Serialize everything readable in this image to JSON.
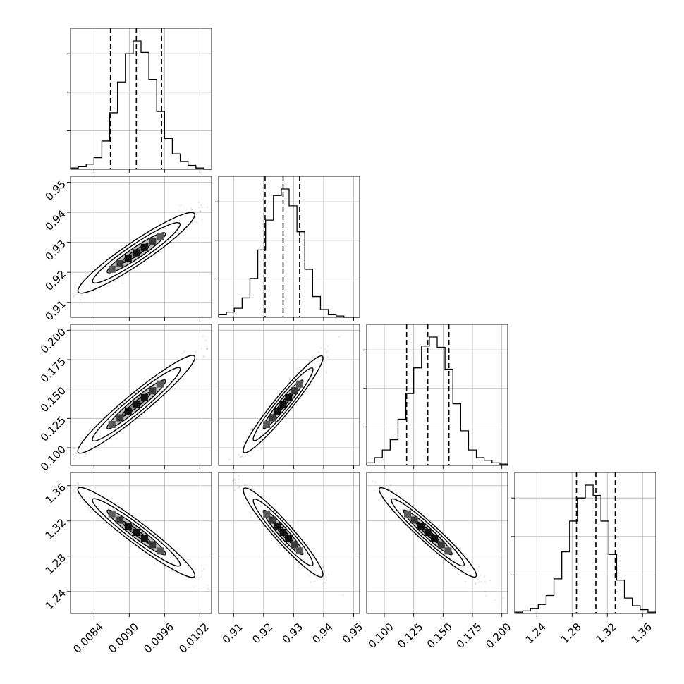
{
  "chart_data": {
    "type": "corner",
    "title": "",
    "parameters": [
      {
        "label": "",
        "range": [
          0.008,
          0.0104
        ],
        "median": 0.00912,
        "q16": 0.00868,
        "q84": 0.00955,
        "ticks": [
          "0.0084",
          "0.0090",
          "0.0096",
          "0.0102"
        ],
        "tick_values": [
          0.0084,
          0.009,
          0.0096,
          0.0102
        ],
        "hist_range": [
          0.008,
          0.0104
        ],
        "hist": [
          1,
          2,
          4,
          9,
          22,
          44,
          68,
          90,
          100,
          91,
          70,
          45,
          24,
          12,
          6,
          3,
          1,
          0
        ]
      },
      {
        "label": "",
        "range": [
          0.905,
          0.952
        ],
        "median": 0.9265,
        "q16": 0.9205,
        "q84": 0.932,
        "ticks": [
          "0.91",
          "0.92",
          "0.93",
          "0.94",
          "0.95"
        ],
        "tick_values": [
          0.91,
          0.92,
          0.93,
          0.94,
          0.95
        ],
        "hist_range": [
          0.905,
          0.952
        ],
        "hist": [
          2,
          4,
          7,
          15,
          30,
          52,
          75,
          94,
          99,
          86,
          66,
          37,
          16,
          6,
          2,
          1,
          0,
          0
        ]
      },
      {
        "label": "",
        "range": [
          0.085,
          0.205
        ],
        "median": 0.137,
        "q16": 0.119,
        "q84": 0.155,
        "ticks": [
          "0.100",
          "0.125",
          "0.150",
          "0.175",
          "0.200"
        ],
        "tick_values": [
          0.1,
          0.125,
          0.15,
          0.175,
          0.2
        ],
        "hist_range": [
          0.085,
          0.205
        ],
        "hist": [
          2,
          6,
          12,
          20,
          36,
          56,
          76,
          93,
          100,
          92,
          75,
          48,
          27,
          12,
          6,
          4,
          2,
          1
        ]
      },
      {
        "label": "",
        "range": [
          1.215,
          1.375
        ],
        "median": 1.307,
        "q16": 1.285,
        "q84": 1.329,
        "ticks": [
          "1.24",
          "1.28",
          "1.32",
          "1.36"
        ],
        "tick_values": [
          1.24,
          1.28,
          1.32,
          1.36
        ],
        "hist_range": [
          1.215,
          1.375
        ],
        "hist": [
          1,
          2,
          4,
          7,
          14,
          27,
          48,
          72,
          90,
          100,
          92,
          72,
          46,
          26,
          12,
          6,
          3,
          1
        ]
      }
    ],
    "correlations": [
      [
        1.0,
        0.95,
        0.96,
        -0.96
      ],
      [
        0.95,
        1.0,
        0.96,
        -0.95
      ],
      [
        0.96,
        0.96,
        1.0,
        -0.96
      ],
      [
        -0.96,
        -0.95,
        -0.96,
        1.0
      ]
    ],
    "contour_levels": [
      0.5,
      1.0,
      1.5,
      2.0
    ],
    "grid": true
  }
}
